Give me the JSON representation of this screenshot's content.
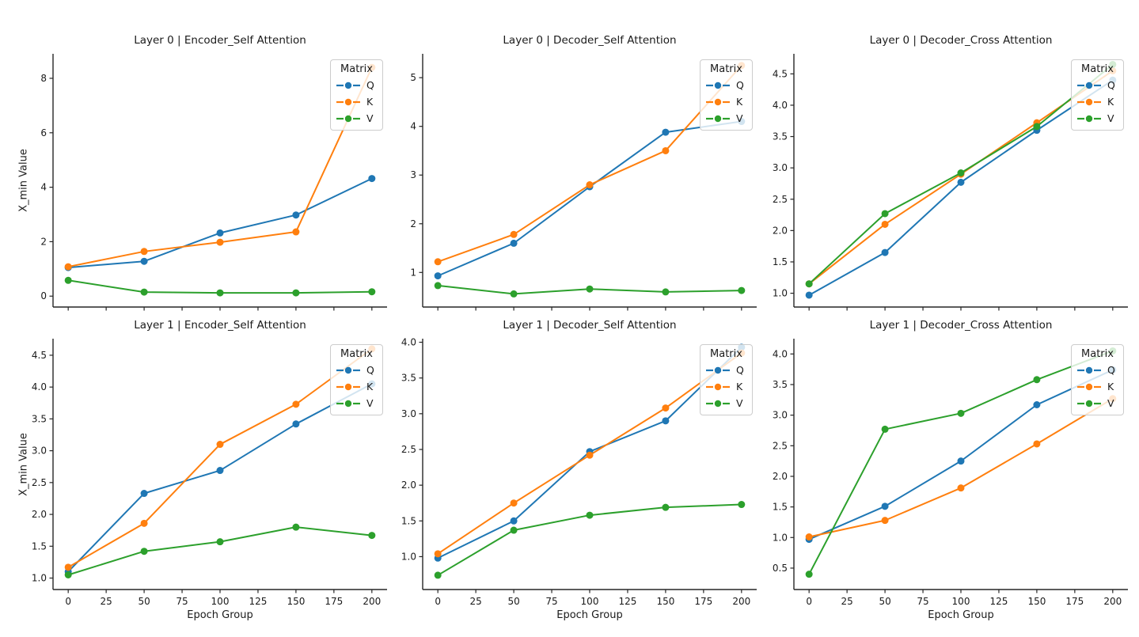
{
  "figure": {
    "ylabel": "X_min Value",
    "xlabel": "Epoch Group",
    "legend": {
      "title": "Matrix",
      "entries": [
        "Q",
        "K",
        "V"
      ]
    },
    "palette": {
      "Q": "#1f77b4",
      "K": "#ff7f0e",
      "V": "#2ca02c"
    },
    "text_color": "#1a1a1a",
    "spine_color": "#262626"
  },
  "chart_data": [
    {
      "type": "line",
      "title": "Layer 0 | Encoder_Self Attention",
      "x": [
        0,
        50,
        100,
        150,
        200
      ],
      "xlim": [
        -10,
        210
      ],
      "xticks": [
        0,
        25,
        50,
        75,
        100,
        125,
        150,
        175,
        200
      ],
      "xtick_labels": [
        "0",
        "25",
        "50",
        "75",
        "100",
        "125",
        "150",
        "175",
        "200"
      ],
      "show_xtick_labels": false,
      "ylim": [
        -0.4,
        8.9
      ],
      "yticks": [
        0,
        2,
        4,
        6,
        8
      ],
      "ytick_labels": [
        "0",
        "2",
        "4",
        "6",
        "8"
      ],
      "legend_position": "upper right",
      "series": [
        {
          "name": "Q",
          "color": "#1f77b4",
          "values": [
            1.05,
            1.28,
            2.32,
            2.98,
            4.32
          ]
        },
        {
          "name": "K",
          "color": "#ff7f0e",
          "values": [
            1.08,
            1.64,
            1.98,
            2.36,
            8.4
          ]
        },
        {
          "name": "V",
          "color": "#2ca02c",
          "values": [
            0.58,
            0.15,
            0.12,
            0.12,
            0.16
          ]
        }
      ]
    },
    {
      "type": "line",
      "title": "Layer 0 | Decoder_Self Attention",
      "x": [
        0,
        50,
        100,
        150,
        200
      ],
      "xlim": [
        -10,
        210
      ],
      "xticks": [
        0,
        25,
        50,
        75,
        100,
        125,
        150,
        175,
        200
      ],
      "xtick_labels": [
        "0",
        "25",
        "50",
        "75",
        "100",
        "125",
        "150",
        "175",
        "200"
      ],
      "show_xtick_labels": false,
      "ylim": [
        0.29,
        5.49
      ],
      "yticks": [
        1,
        2,
        3,
        4,
        5
      ],
      "ytick_labels": [
        "1",
        "2",
        "3",
        "4",
        "5"
      ],
      "legend_position": "upper right",
      "series": [
        {
          "name": "Q",
          "color": "#1f77b4",
          "values": [
            0.93,
            1.6,
            2.76,
            3.88,
            4.1
          ]
        },
        {
          "name": "K",
          "color": "#ff7f0e",
          "values": [
            1.22,
            1.78,
            2.8,
            3.5,
            5.25
          ]
        },
        {
          "name": "V",
          "color": "#2ca02c",
          "values": [
            0.73,
            0.56,
            0.66,
            0.6,
            0.63
          ]
        }
      ]
    },
    {
      "type": "line",
      "title": "Layer 0 | Decoder_Cross Attention",
      "x": [
        0,
        50,
        100,
        150,
        200
      ],
      "xlim": [
        -10,
        210
      ],
      "xticks": [
        0,
        25,
        50,
        75,
        100,
        125,
        150,
        175,
        200
      ],
      "xtick_labels": [
        "0",
        "25",
        "50",
        "75",
        "100",
        "125",
        "150",
        "175",
        "200"
      ],
      "show_xtick_labels": false,
      "ylim": [
        0.78,
        4.82
      ],
      "yticks": [
        1.0,
        1.5,
        2.0,
        2.5,
        3.0,
        3.5,
        4.0,
        4.5
      ],
      "ytick_labels": [
        "1.0",
        "1.5",
        "2.0",
        "2.5",
        "3.0",
        "3.5",
        "4.0",
        "4.5"
      ],
      "legend_position": "upper right",
      "series": [
        {
          "name": "Q",
          "color": "#1f77b4",
          "values": [
            0.97,
            1.65,
            2.77,
            3.6,
            4.4
          ]
        },
        {
          "name": "K",
          "color": "#ff7f0e",
          "values": [
            1.15,
            2.1,
            2.9,
            3.72,
            4.55
          ]
        },
        {
          "name": "V",
          "color": "#2ca02c",
          "values": [
            1.15,
            2.27,
            2.92,
            3.66,
            4.65
          ]
        }
      ]
    },
    {
      "type": "line",
      "title": "Layer 1 | Encoder_Self Attention",
      "x": [
        0,
        50,
        100,
        150,
        200
      ],
      "xlim": [
        -10,
        210
      ],
      "xticks": [
        0,
        25,
        50,
        75,
        100,
        125,
        150,
        175,
        200
      ],
      "xtick_labels": [
        "0",
        "25",
        "50",
        "75",
        "100",
        "125",
        "150",
        "175",
        "200"
      ],
      "show_xtick_labels": true,
      "ylim": [
        0.82,
        4.76
      ],
      "yticks": [
        1.0,
        1.5,
        2.0,
        2.5,
        3.0,
        3.5,
        4.0,
        4.5
      ],
      "ytick_labels": [
        "1.0",
        "1.5",
        "2.0",
        "2.5",
        "3.0",
        "3.5",
        "4.0",
        "4.5"
      ],
      "legend_position": "upper right",
      "series": [
        {
          "name": "Q",
          "color": "#1f77b4",
          "values": [
            1.1,
            2.33,
            2.69,
            3.42,
            4.05
          ]
        },
        {
          "name": "K",
          "color": "#ff7f0e",
          "values": [
            1.17,
            1.86,
            3.1,
            3.73,
            4.6
          ]
        },
        {
          "name": "V",
          "color": "#2ca02c",
          "values": [
            1.05,
            1.42,
            1.57,
            1.8,
            1.67
          ]
        }
      ]
    },
    {
      "type": "line",
      "title": "Layer 1 | Decoder_Self Attention",
      "x": [
        0,
        50,
        100,
        150,
        200
      ],
      "xlim": [
        -10,
        210
      ],
      "xticks": [
        0,
        25,
        50,
        75,
        100,
        125,
        150,
        175,
        200
      ],
      "xtick_labels": [
        "0",
        "25",
        "50",
        "75",
        "100",
        "125",
        "150",
        "175",
        "200"
      ],
      "show_xtick_labels": true,
      "ylim": [
        0.54,
        4.05
      ],
      "yticks": [
        1.0,
        1.5,
        2.0,
        2.5,
        3.0,
        3.5,
        4.0
      ],
      "ytick_labels": [
        "1.0",
        "1.5",
        "2.0",
        "2.5",
        "3.0",
        "3.5",
        "4.0"
      ],
      "legend_position": "upper right",
      "series": [
        {
          "name": "Q",
          "color": "#1f77b4",
          "values": [
            0.98,
            1.5,
            2.47,
            2.9,
            3.93
          ]
        },
        {
          "name": "K",
          "color": "#ff7f0e",
          "values": [
            1.04,
            1.75,
            2.42,
            3.08,
            3.85
          ]
        },
        {
          "name": "V",
          "color": "#2ca02c",
          "values": [
            0.74,
            1.37,
            1.58,
            1.69,
            1.73
          ]
        }
      ]
    },
    {
      "type": "line",
      "title": "Layer 1 | Decoder_Cross Attention",
      "x": [
        0,
        50,
        100,
        150,
        200
      ],
      "xlim": [
        -10,
        210
      ],
      "xticks": [
        0,
        25,
        50,
        75,
        100,
        125,
        150,
        175,
        200
      ],
      "xtick_labels": [
        "0",
        "25",
        "50",
        "75",
        "100",
        "125",
        "150",
        "175",
        "200"
      ],
      "show_xtick_labels": true,
      "ylim": [
        0.15,
        4.25
      ],
      "yticks": [
        0.5,
        1.0,
        1.5,
        2.0,
        2.5,
        3.0,
        3.5,
        4.0
      ],
      "ytick_labels": [
        "0.5",
        "1.0",
        "1.5",
        "2.0",
        "2.5",
        "3.0",
        "3.5",
        "4.0"
      ],
      "legend_position": "upper right",
      "series": [
        {
          "name": "Q",
          "color": "#1f77b4",
          "values": [
            0.97,
            1.51,
            2.25,
            3.17,
            3.74
          ]
        },
        {
          "name": "K",
          "color": "#ff7f0e",
          "values": [
            1.01,
            1.28,
            1.81,
            2.53,
            3.27
          ]
        },
        {
          "name": "V",
          "color": "#2ca02c",
          "values": [
            0.4,
            2.77,
            3.03,
            3.58,
            4.05
          ]
        }
      ]
    }
  ]
}
